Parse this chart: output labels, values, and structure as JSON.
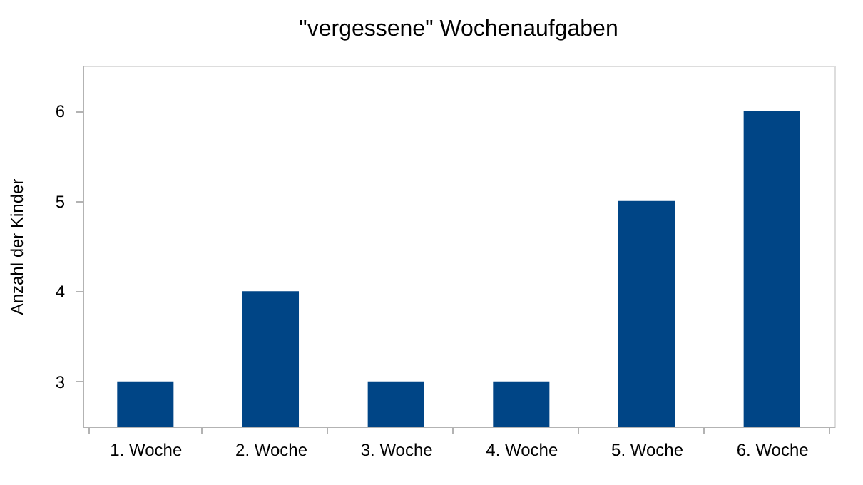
{
  "chart_data": {
    "type": "bar",
    "title": "\"vergessene\" Wochenaufgaben",
    "ylabel": "Anzahl der Kinder",
    "categories": [
      "1. Woche",
      "2. Woche",
      "3. Woche",
      "4. Woche",
      "5. Woche",
      "6. Woche"
    ],
    "values": [
      3,
      4,
      3,
      3,
      5,
      6
    ],
    "color": "#004586",
    "ylim": [
      2.5,
      6.5
    ],
    "yticks": [
      3,
      4,
      5,
      6
    ],
    "grid": false
  }
}
